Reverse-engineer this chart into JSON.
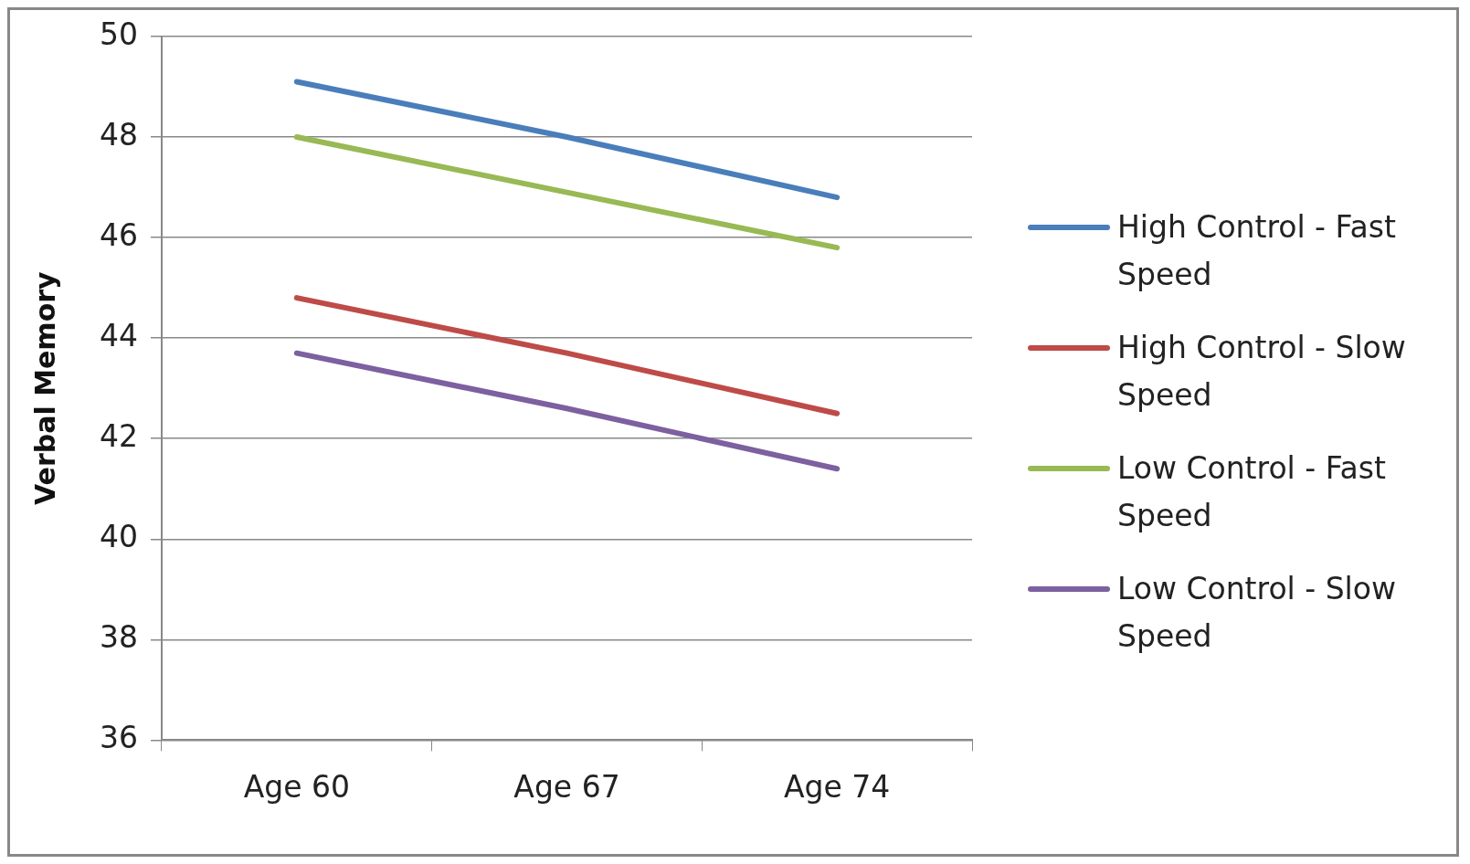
{
  "chart_data": {
    "type": "line",
    "ylabel": "Verbal Memory",
    "categories": [
      "Age 60",
      "Age 67",
      "Age 74"
    ],
    "series": [
      {
        "name": "High Control - Fast Speed",
        "color": "#4a7ebb",
        "values": [
          49.1,
          48.0,
          46.8
        ]
      },
      {
        "name": "High Control - Slow Speed",
        "color": "#be4b48",
        "values": [
          44.8,
          43.7,
          42.5
        ]
      },
      {
        "name": "Low Control - Fast Speed",
        "color": "#98b954",
        "values": [
          48.0,
          46.9,
          45.8
        ]
      },
      {
        "name": "Low Control - Slow Speed",
        "color": "#7d60a0",
        "values": [
          43.7,
          42.6,
          41.4
        ]
      }
    ],
    "ylim": [
      36,
      50
    ],
    "yticks": [
      36,
      38,
      40,
      42,
      44,
      46,
      48,
      50
    ],
    "grid": "y",
    "legend": "right",
    "marker": "none",
    "line_style": "solid"
  }
}
